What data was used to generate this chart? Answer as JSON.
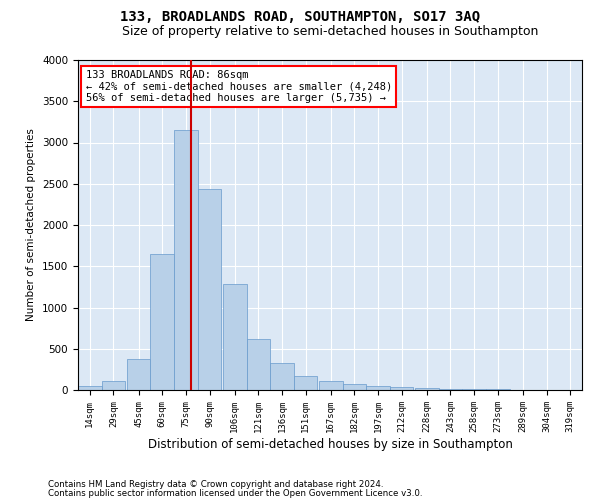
{
  "title1": "133, BROADLANDS ROAD, SOUTHAMPTON, SO17 3AQ",
  "title2": "Size of property relative to semi-detached houses in Southampton",
  "xlabel": "Distribution of semi-detached houses by size in Southampton",
  "ylabel": "Number of semi-detached properties",
  "footnote1": "Contains HM Land Registry data © Crown copyright and database right 2024.",
  "footnote2": "Contains public sector information licensed under the Open Government Licence v3.0.",
  "annotation_title": "133 BROADLANDS ROAD: 86sqm",
  "annotation_line1": "← 42% of semi-detached houses are smaller (4,248)",
  "annotation_line2": "56% of semi-detached houses are larger (5,735) →",
  "bar_color": "#b8d0e8",
  "bar_edge_color": "#6699cc",
  "marker_value": 86,
  "marker_color": "#cc0000",
  "categories": [
    "14sqm",
    "29sqm",
    "45sqm",
    "60sqm",
    "75sqm",
    "90sqm",
    "106sqm",
    "121sqm",
    "136sqm",
    "151sqm",
    "167sqm",
    "182sqm",
    "197sqm",
    "212sqm",
    "228sqm",
    "243sqm",
    "258sqm",
    "273sqm",
    "289sqm",
    "304sqm",
    "319sqm"
  ],
  "bin_left_edges": [
    14,
    29,
    45,
    60,
    75,
    90,
    106,
    121,
    136,
    151,
    167,
    182,
    197,
    212,
    228,
    243,
    258,
    273,
    289,
    304,
    319
  ],
  "bin_width": 15,
  "values": [
    50,
    115,
    380,
    1650,
    3150,
    2440,
    1280,
    620,
    330,
    175,
    105,
    70,
    50,
    35,
    25,
    15,
    10,
    8,
    5,
    3,
    1
  ],
  "ylim": [
    0,
    4000
  ],
  "yticks": [
    0,
    500,
    1000,
    1500,
    2000,
    2500,
    3000,
    3500,
    4000
  ],
  "bg_color": "#dce8f5",
  "grid_color": "#ffffff",
  "title1_fontsize": 10,
  "title2_fontsize": 9,
  "xlabel_fontsize": 8.5,
  "ylabel_fontsize": 7.5,
  "tick_fontsize": 6.5,
  "annot_fontsize": 7.5
}
